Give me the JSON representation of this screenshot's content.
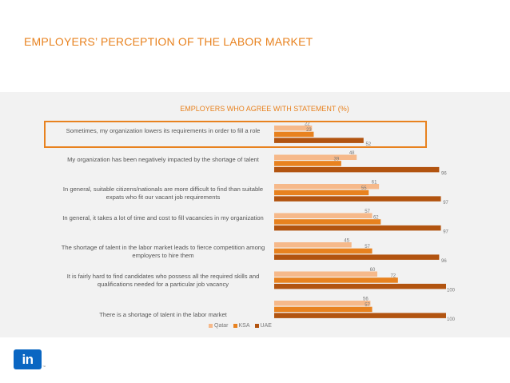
{
  "header": {
    "title": "EMPLOYERS’ PERCEPTION OF THE LABOR MARKET"
  },
  "colors": {
    "Qatar": "#f6b98a",
    "KSA": "#e8821f",
    "UAE": "#b25410",
    "accent": "#e8821f"
  },
  "chart_data": {
    "type": "bar",
    "orientation": "horizontal",
    "title": "EMPLOYERS WHO AGREE WITH STATEMENT (%)",
    "xlim": [
      0,
      100
    ],
    "grid": false,
    "legend_position": "bottom",
    "highlighted_category_index": 0,
    "categories": [
      "Sometimes, my organization lowers its requirements in order to fill a role",
      "My organization has been negatively impacted by the shortage of talent",
      "In general, suitable citizens/nationals are more difficult to find than suitable expats who fit our vacant job requirements",
      "In general, it takes a lot of time and cost to fill vacancies in my organization",
      "The shortage of talent in the labor market leads to fierce competition among employers to hire them",
      "It is fairly hard to find candidates who possess all the required skills and qualifications needed for a particular job vacancy",
      "There is a shortage of talent in the labor market"
    ],
    "series": [
      {
        "name": "Qatar",
        "values": [
          22,
          48,
          61,
          57,
          45,
          60,
          56
        ]
      },
      {
        "name": "KSA",
        "values": [
          23,
          39,
          55,
          62,
          57,
          72,
          57
        ]
      },
      {
        "name": "UAE",
        "values": [
          52,
          96,
          97,
          97,
          96,
          100,
          100
        ]
      }
    ]
  },
  "logo": {
    "text": "in",
    "trademark": "™"
  }
}
